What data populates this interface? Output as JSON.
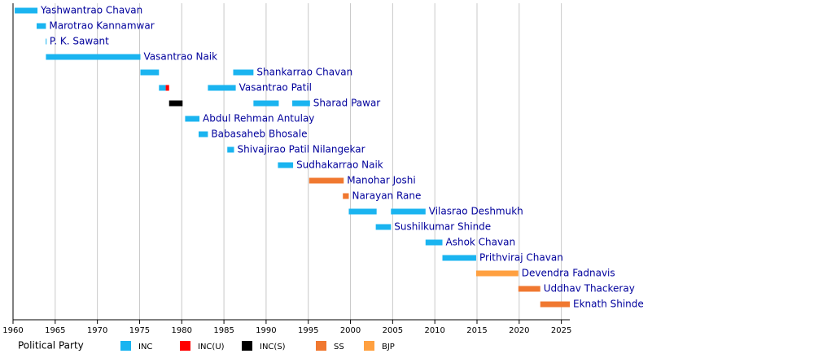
{
  "chart_data": {
    "type": "timeline",
    "legend_title": "Political Party",
    "categories": [
      "Yashwantrao Chavan",
      "Marotrao Kannamwar",
      "P. K. Sawant",
      "Vasantrao Naik",
      "Shankarrao Chavan",
      "Vasantrao Patil",
      "Sharad Pawar",
      "Abdul Rehman Antulay",
      "Babasaheb Bhosale",
      "Shivajirao Patil Nilangekar",
      "Sudhakarrao Naik",
      "Manohar Joshi",
      "Narayan Rane",
      "Vilasrao Deshmukh",
      "Sushilkumar Shinde",
      "Ashok Chavan",
      "Prithviraj Chavan",
      "Devendra Fadnavis",
      "Uddhav Thackeray",
      "Eknath Shinde"
    ],
    "series": [
      {
        "name": "INC",
        "color": "#1ab4f0",
        "values": [
          [
            [
              1960.2,
              1962.9
            ]
          ],
          [
            [
              1962.8,
              1963.9
            ]
          ],
          [
            [
              1963.88,
              1963.95
            ]
          ],
          [
            [
              1963.9,
              1975.1
            ]
          ],
          [
            [
              1975.1,
              1977.3
            ],
            [
              1986.1,
              1988.5
            ]
          ],
          [
            [
              1977.3,
              1978.1
            ],
            [
              1983.1,
              1986.4
            ]
          ],
          [
            [
              1988.5,
              1991.5
            ],
            [
              1993.1,
              1995.2
            ]
          ],
          [
            [
              1980.4,
              1982.1
            ]
          ],
          [
            [
              1982.0,
              1983.1
            ]
          ],
          [
            [
              1985.4,
              1986.2
            ]
          ],
          [
            [
              1991.4,
              1993.2
            ]
          ],
          null,
          null,
          [
            [
              1999.8,
              2003.1
            ],
            [
              2004.8,
              2008.9
            ]
          ],
          [
            [
              2003.0,
              2004.8
            ]
          ],
          [
            [
              2008.9,
              2010.9
            ]
          ],
          [
            [
              2010.9,
              2014.9
            ]
          ],
          null,
          null,
          null
        ]
      },
      {
        "name": "INC(U)",
        "color": "#ff0000",
        "values": [
          null,
          null,
          null,
          null,
          null,
          [
            [
              1978.1,
              1978.5
            ]
          ],
          null,
          null,
          null,
          null,
          null,
          null,
          null,
          null,
          null,
          null,
          null,
          null,
          null,
          null
        ]
      },
      {
        "name": "INC(S)",
        "color": "#000000",
        "values": [
          null,
          null,
          null,
          null,
          null,
          null,
          [
            [
              1978.5,
              1980.1
            ]
          ],
          null,
          null,
          null,
          null,
          null,
          null,
          null,
          null,
          null,
          null,
          null,
          null,
          null
        ]
      },
      {
        "name": "SS",
        "color": "#f07830",
        "values": [
          null,
          null,
          null,
          null,
          null,
          null,
          null,
          null,
          null,
          null,
          null,
          [
            [
              1995.1,
              1999.2
            ]
          ],
          [
            [
              1999.1,
              1999.8
            ]
          ],
          null,
          null,
          null,
          null,
          null,
          [
            [
              2019.9,
              2022.5
            ]
          ],
          [
            [
              2022.5,
              2026
            ]
          ]
        ]
      },
      {
        "name": "BJP",
        "color": "#ffa040",
        "values": [
          null,
          null,
          null,
          null,
          null,
          null,
          null,
          null,
          null,
          null,
          null,
          null,
          null,
          null,
          null,
          null,
          null,
          [
            [
              2014.9,
              2019.9
            ]
          ],
          null,
          null
        ]
      }
    ],
    "xlim": [
      1960,
      2026
    ],
    "xticks": [
      1960,
      1965,
      1970,
      1975,
      1980,
      1985,
      1990,
      1995,
      2000,
      2005,
      2010,
      2015,
      2020,
      2025
    ],
    "grid": true
  }
}
